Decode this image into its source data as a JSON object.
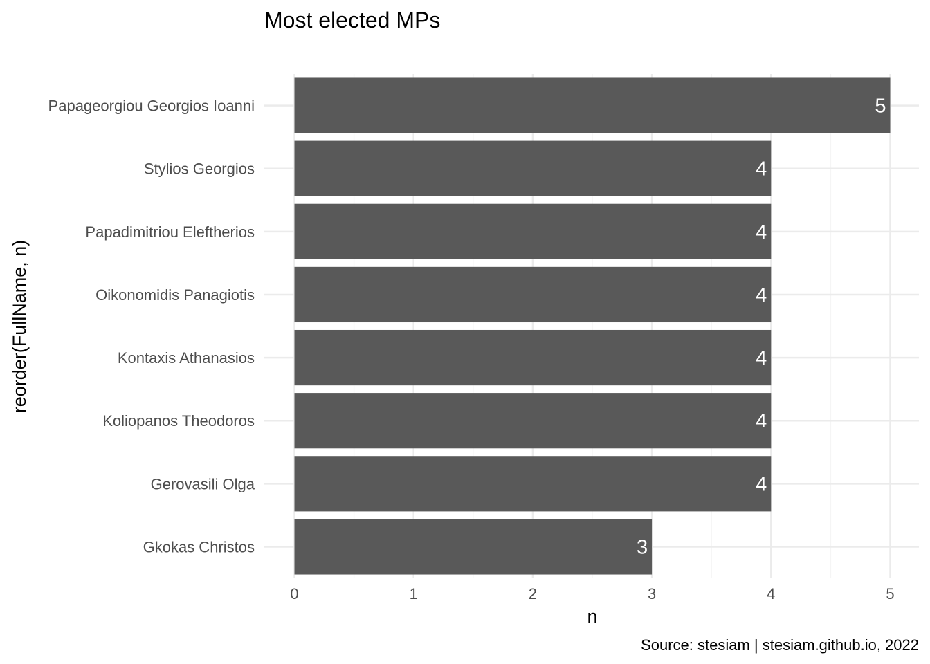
{
  "chart_data": {
    "type": "bar",
    "orientation": "horizontal",
    "title": "Most elected MPs",
    "xlabel": "n",
    "ylabel": "reorder(FullName, n)",
    "caption": "Source: stesiam | stesiam.github.io, 2022",
    "categories": [
      "Gkokas Christos",
      "Gerovasili Olga",
      "Koliopanos Theodoros",
      "Kontaxis Athanasios",
      "Oikonomidis Panagiotis",
      "Papadimitriou Eleftherios",
      "Stylios Georgios",
      "Papageorgiou Georgios Ioanni"
    ],
    "values": [
      3,
      4,
      4,
      4,
      4,
      4,
      4,
      5
    ],
    "data_labels": [
      "3",
      "4",
      "4",
      "4",
      "4",
      "4",
      "4",
      "5"
    ],
    "x_ticks": [
      "0",
      "1",
      "2",
      "3",
      "4",
      "5"
    ],
    "xlim": [
      0,
      5
    ],
    "grid": true,
    "legend": "none",
    "bar_color": "#595959",
    "grid_major_color": "#ebebeb",
    "grid_minor_color": "#f5f5f5"
  }
}
